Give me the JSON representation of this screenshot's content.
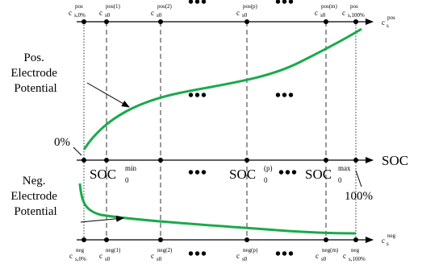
{
  "labels": {
    "pos_electrode": [
      "Pos.",
      "Electrode",
      "Potential"
    ],
    "neg_electrode": [
      "Neg.",
      "Electrode",
      "Potential"
    ],
    "zero_percent": "0%",
    "hundred_percent": "100%",
    "soc_axis": "SOC",
    "dots": "•••"
  },
  "top_axis": {
    "name": {
      "base": "c",
      "sub": "s",
      "sup": "pos"
    },
    "ticks": [
      {
        "base": "c",
        "sub": "s,0%",
        "sup": "pos"
      },
      {
        "base": "c",
        "sub": "s0",
        "sup": "pos(1)"
      },
      {
        "base": "c",
        "sub": "s0",
        "sup": "pos(2)"
      },
      {
        "base": "c",
        "sub": "s0",
        "sup": "pos(p)"
      },
      {
        "base": "c",
        "sub": "s0",
        "sup": "pos(m)"
      },
      {
        "base": "c",
        "sub": "s,100%",
        "sup": "pos"
      }
    ]
  },
  "soc_ticks": [
    {
      "base": "SOC",
      "sub": "0",
      "sup": "min"
    },
    {
      "base": "SOC",
      "sub": "0",
      "sup": "(p)"
    },
    {
      "base": "SOC",
      "sub": "0",
      "sup": "max"
    }
  ],
  "bottom_axis": {
    "name": {
      "base": "c",
      "sub": "s",
      "sup": "neg"
    },
    "ticks": [
      {
        "base": "c",
        "sub": "s,0%",
        "sup": "neg"
      },
      {
        "base": "c",
        "sub": "s0",
        "sup": "neg(1)"
      },
      {
        "base": "c",
        "sub": "s0",
        "sup": "neg(2)"
      },
      {
        "base": "c",
        "sub": "s0",
        "sup": "neg(p)"
      },
      {
        "base": "c",
        "sub": "s0",
        "sup": "neg(m)"
      },
      {
        "base": "c",
        "sub": "s,100%",
        "sup": "neg"
      }
    ]
  },
  "colors": {
    "curve": "#1aaa4a",
    "line": "#000000"
  }
}
